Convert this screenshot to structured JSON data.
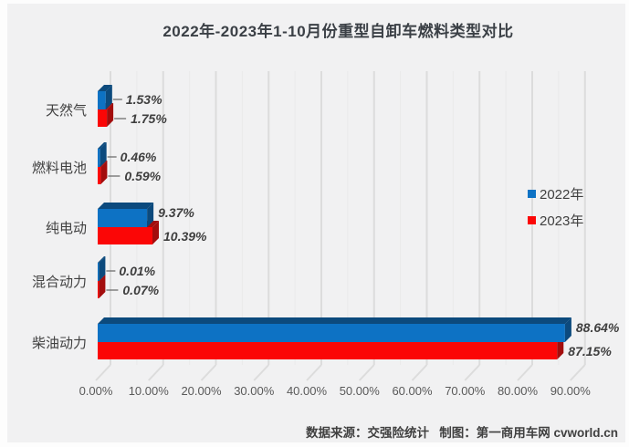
{
  "title": "2022年-2023年1-10月份重型自卸车燃料类型对比",
  "footer": "数据来源：交强险统计   制图：第一商用车网 cvworld.cn",
  "colors": {
    "background": "#f1f1f2",
    "grid_major": "#dcdcdc",
    "grid_minor": "#eaeaea",
    "blue_front": "#0d72c4",
    "blue_dark": "#0c4a7d",
    "red_front": "#fb0606",
    "red_dark": "#a30d0d",
    "tick_text": "#595959",
    "label_text": "#3f3f3f",
    "category_text": "#404040",
    "leader_line": "#6e6e6e"
  },
  "legend": {
    "items": [
      {
        "label": "2022年",
        "color": "#0d72c4"
      },
      {
        "label": "2023年",
        "color": "#fb0606"
      }
    ]
  },
  "chart_data": {
    "type": "bar",
    "orientation": "horizontal",
    "title": "2022年-2023年1-10月份重型自卸车燃料类型对比",
    "categories": [
      "天然气",
      "燃料电池",
      "纯电动",
      "混合动力",
      "柴油动力"
    ],
    "series": [
      {
        "name": "2022年",
        "color": "#0d72c4",
        "dark": "#0c4a7d",
        "values": [
          1.53,
          0.46,
          9.37,
          0.01,
          88.64
        ],
        "labels": [
          "1.53%",
          "0.46%",
          "9.37%",
          "0.01%",
          "88.64%"
        ]
      },
      {
        "name": "2023年",
        "color": "#fb0606",
        "dark": "#a30d0d",
        "values": [
          1.75,
          0.59,
          10.39,
          0.07,
          87.15
        ],
        "labels": [
          "1.75%",
          "0.59%",
          "10.39%",
          "0.07%",
          "87.15%"
        ]
      }
    ],
    "x_ticks": [
      "0.00%",
      "10.00%",
      "20.00%",
      "30.00%",
      "40.00%",
      "50.00%",
      "60.00%",
      "70.00%",
      "80.00%",
      "90.00%"
    ],
    "xlim": [
      0,
      90
    ],
    "grid": true,
    "effect": "3d",
    "legend_position": "right",
    "xlabel": "",
    "ylabel": ""
  }
}
